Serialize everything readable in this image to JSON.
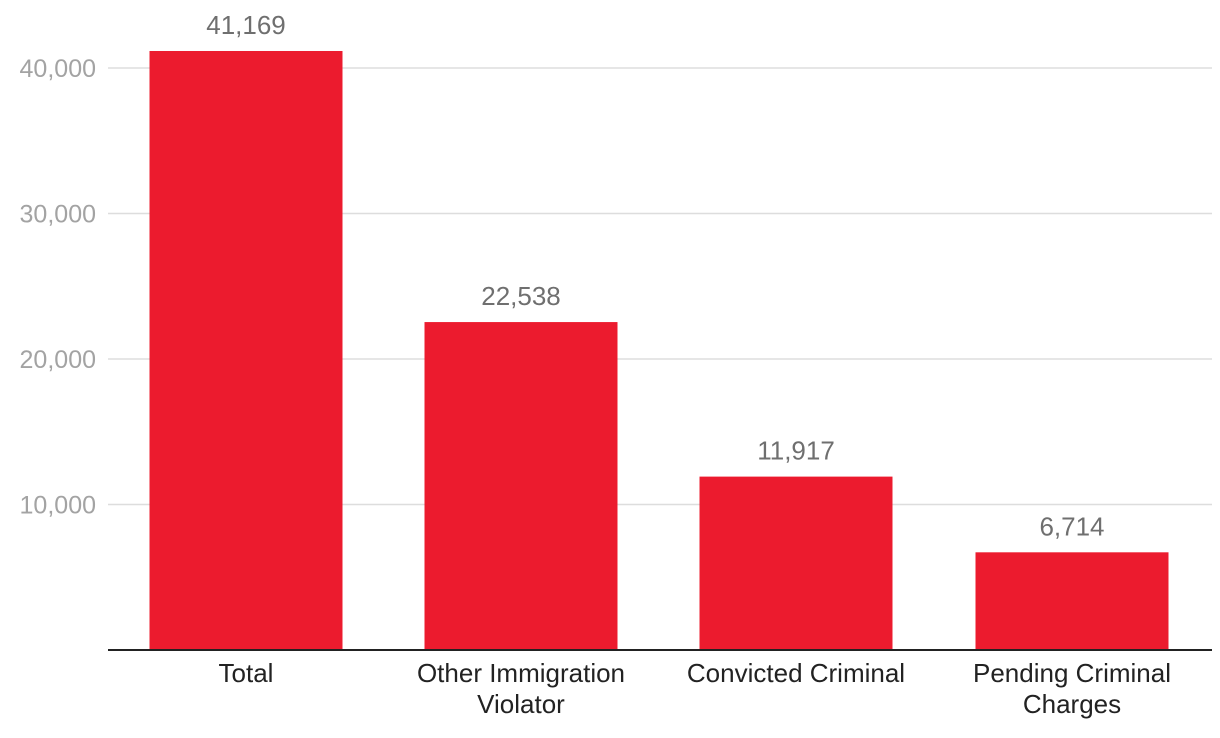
{
  "chart_data": {
    "type": "bar",
    "title": "",
    "xlabel": "",
    "ylabel": "",
    "categories": [
      [
        "Total"
      ],
      [
        "Other Immigration",
        "Violator"
      ],
      [
        "Convicted Criminal"
      ],
      [
        "Pending Criminal",
        "Charges"
      ]
    ],
    "values": [
      41169,
      22538,
      11917,
      6714
    ],
    "value_labels": [
      "41,169",
      "22,538",
      "11,917",
      "6,714"
    ],
    "y_ticks": [
      10000,
      20000,
      30000,
      40000
    ],
    "y_tick_labels": [
      "10,000",
      "20,000",
      "30,000",
      "40,000"
    ],
    "ylim": [
      0,
      44000
    ],
    "grid": true,
    "bar_color": "#ec1b2e"
  }
}
